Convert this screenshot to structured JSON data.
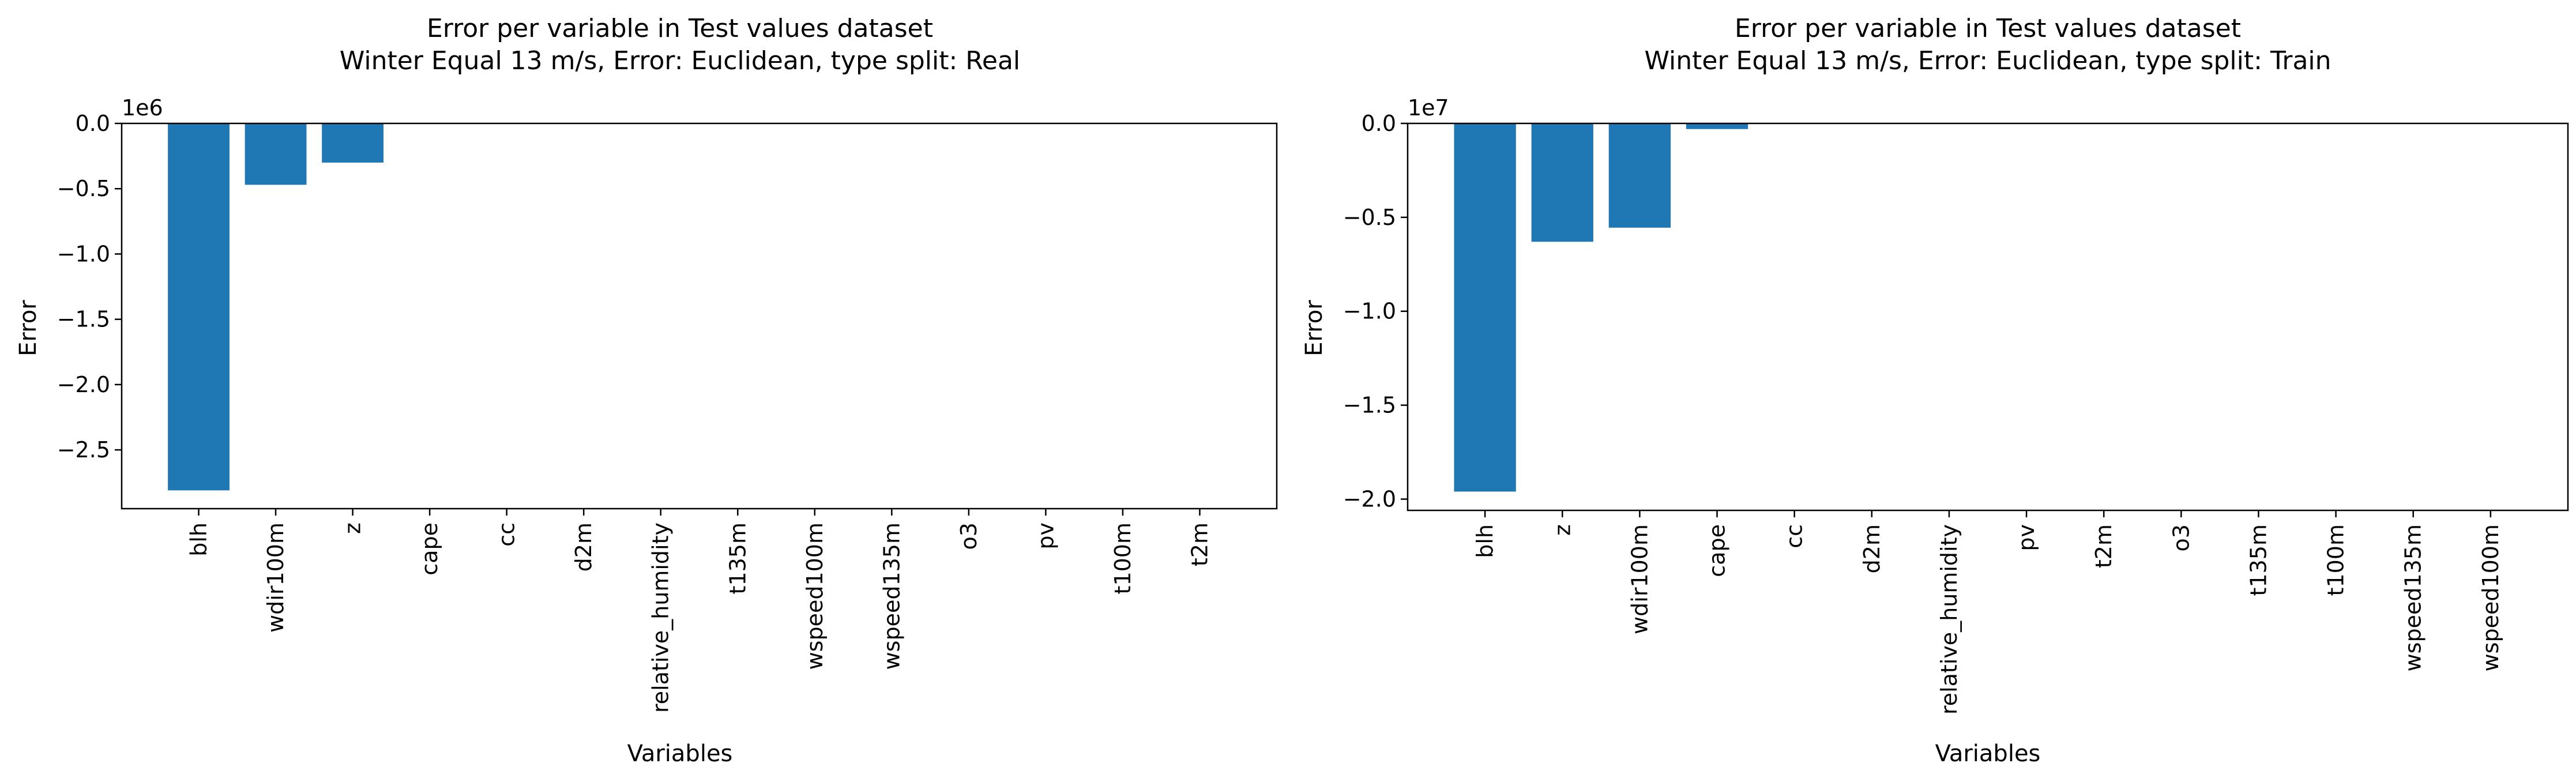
{
  "chart_data": [
    {
      "type": "bar",
      "title": "Error per variable in Test values dataset",
      "subtitle": "Winter Equal 13 m/s, Error: Euclidean, type split: Real",
      "xlabel": "Variables",
      "ylabel": "Error",
      "offset_text": "1e6",
      "categories": [
        "blh",
        "wdir100m",
        "z",
        "cape",
        "cc",
        "d2m",
        "relative_humidity",
        "t135m",
        "wspeed100m",
        "wspeed135m",
        "o3",
        "pv",
        "t100m",
        "t2m"
      ],
      "values": [
        -2810000,
        -470000,
        -300000,
        0,
        0,
        0,
        0,
        0,
        0,
        0,
        0,
        0,
        0,
        0
      ],
      "ylim": [
        -2950000,
        0
      ],
      "yticks": [
        0,
        -500000,
        -1000000,
        -1500000,
        -2000000,
        -2500000
      ],
      "ytick_labels": [
        "0.0",
        "−0.5",
        "−1.0",
        "−1.5",
        "−2.0",
        "−2.5"
      ],
      "bar_color": "#1f77b4"
    },
    {
      "type": "bar",
      "title": "Error per variable in Test values dataset",
      "subtitle": "Winter Equal 13 m/s, Error: Euclidean, type split: Train",
      "xlabel": "Variables",
      "ylabel": "Error",
      "offset_text": "1e7",
      "categories": [
        "blh",
        "z",
        "wdir100m",
        "cape",
        "cc",
        "d2m",
        "relative_humidity",
        "pv",
        "t2m",
        "o3",
        "t135m",
        "t100m",
        "wspeed135m",
        "wspeed100m"
      ],
      "values": [
        -19600000,
        -6300000,
        -5550000,
        -300000,
        0,
        0,
        0,
        0,
        0,
        0,
        0,
        0,
        0,
        0
      ],
      "ylim": [
        -20600000,
        0
      ],
      "yticks": [
        0,
        -5000000,
        -10000000,
        -15000000,
        -20000000
      ],
      "ytick_labels": [
        "0.0",
        "−0.5",
        "−1.0",
        "−1.5",
        "−2.0"
      ],
      "bar_color": "#1f77b4"
    }
  ]
}
